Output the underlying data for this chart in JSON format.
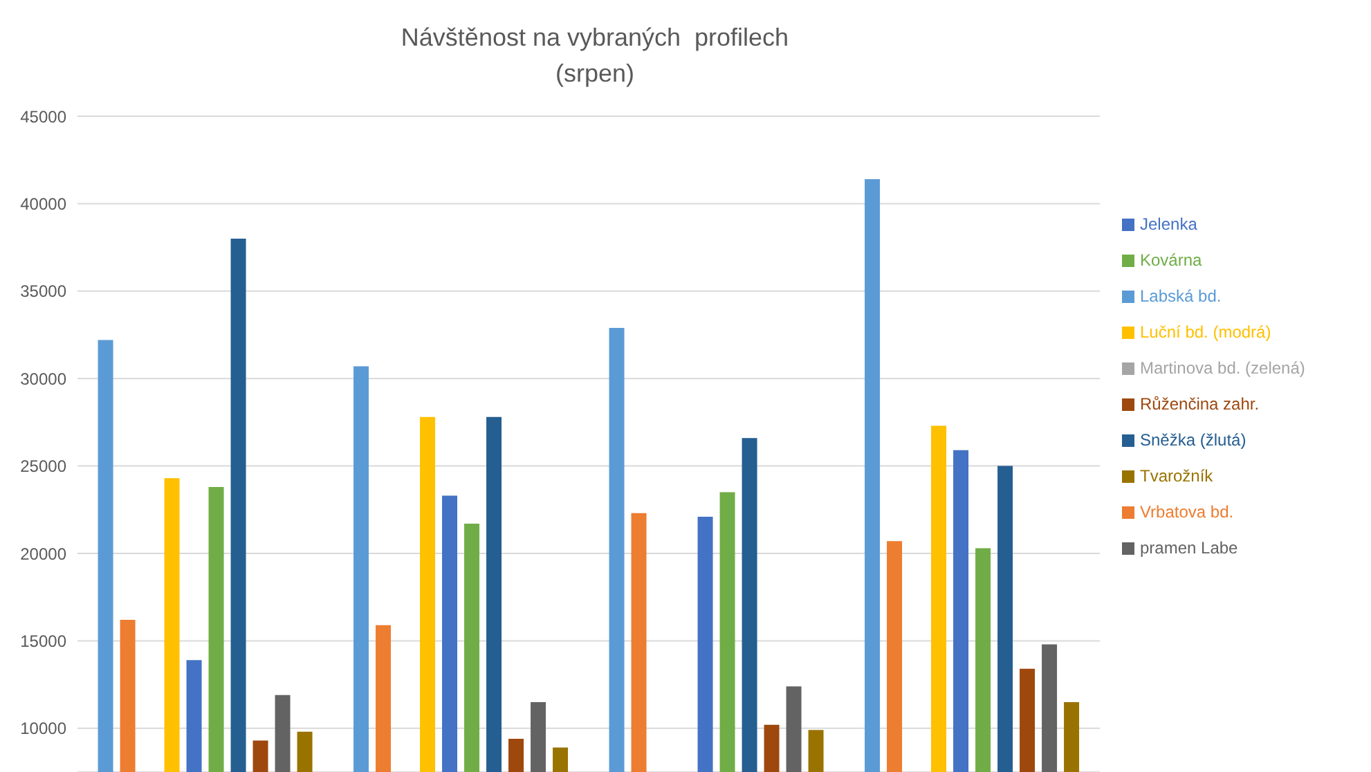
{
  "chart_data": {
    "type": "bar",
    "title": "Návštěnost na vybraných  profilech\n(srpen)",
    "categories": [
      null,
      null,
      null,
      null
    ],
    "series": [
      {
        "name": "Labská bd.",
        "color": "#5b9bd5",
        "values": [
          32200,
          30700,
          32900,
          41400
        ]
      },
      {
        "name": "Vrbatova bd.",
        "color": "#ed7d31",
        "values": [
          16200,
          15900,
          22300,
          20700
        ]
      },
      {
        "name": "Martinova bd. (zelená)",
        "color": "#a5a5a5",
        "values": [
          null,
          null,
          null,
          null
        ]
      },
      {
        "name": "Luční bd. (modrá)",
        "color": "#ffc000",
        "values": [
          24300,
          27800,
          null,
          27300
        ]
      },
      {
        "name": "Jelenka",
        "color": "#4472c4",
        "values": [
          13900,
          23300,
          22100,
          25900
        ]
      },
      {
        "name": "Kovárna",
        "color": "#70ad47",
        "values": [
          23800,
          21700,
          23500,
          20300
        ]
      },
      {
        "name": "Sněžka (žlutá)",
        "color": "#255e91",
        "values": [
          38000,
          27800,
          26600,
          25000
        ]
      },
      {
        "name": "Růženčina zahr.",
        "color": "#9e480e",
        "values": [
          9300,
          9400,
          10200,
          13400
        ]
      },
      {
        "name": "pramen Labe",
        "color": "#636363",
        "values": [
          11900,
          11500,
          12400,
          14800
        ]
      },
      {
        "name": "Tvarožník",
        "color": "#997300",
        "values": [
          9800,
          8900,
          9900,
          11500
        ]
      }
    ],
    "ylim": [
      7500,
      45000
    ],
    "yticks": [
      10000,
      15000,
      20000,
      25000,
      30000,
      35000,
      40000,
      45000
    ],
    "grid": "y",
    "legend": "right",
    "tick_labels": "y"
  }
}
